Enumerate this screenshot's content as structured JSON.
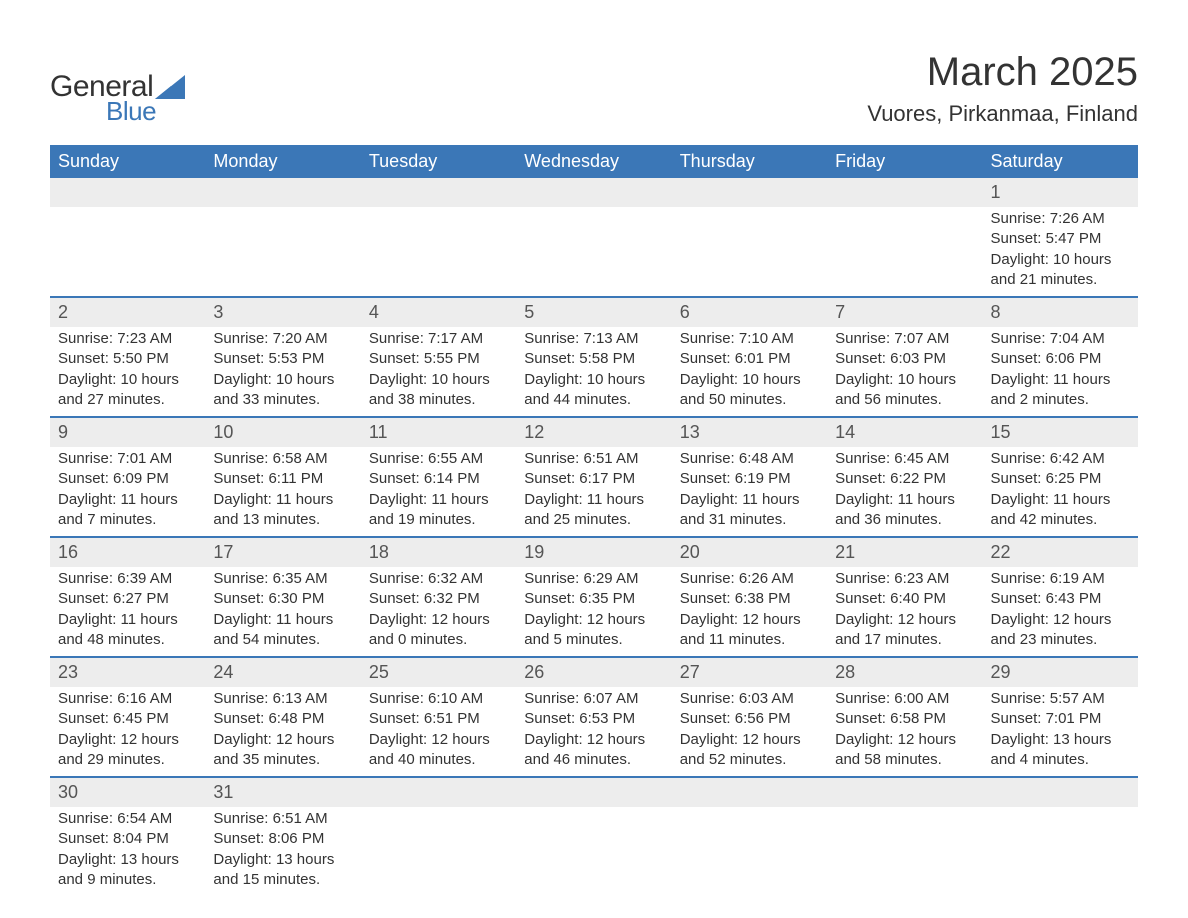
{
  "logo": {
    "text_top": "General",
    "text_bottom": "Blue",
    "accent_color": "#3b77b7"
  },
  "title": "March 2025",
  "location": "Vuores, Pirkanmaa, Finland",
  "colors": {
    "header_bg": "#3b77b7",
    "header_text": "#ffffff",
    "daynum_bg": "#ededed",
    "row_border": "#3b77b7",
    "body_text": "#333333",
    "bg": "#ffffff"
  },
  "fonts": {
    "title_size_pt": 30,
    "location_size_pt": 17,
    "header_size_pt": 14,
    "daynum_size_pt": 14,
    "detail_size_pt": 11
  },
  "day_headers": [
    "Sunday",
    "Monday",
    "Tuesday",
    "Wednesday",
    "Thursday",
    "Friday",
    "Saturday"
  ],
  "weeks": [
    {
      "nums": [
        "",
        "",
        "",
        "",
        "",
        "",
        "1"
      ],
      "details": [
        "",
        "",
        "",
        "",
        "",
        "",
        "Sunrise: 7:26 AM\nSunset: 5:47 PM\nDaylight: 10 hours and 21 minutes."
      ]
    },
    {
      "nums": [
        "2",
        "3",
        "4",
        "5",
        "6",
        "7",
        "8"
      ],
      "details": [
        "Sunrise: 7:23 AM\nSunset: 5:50 PM\nDaylight: 10 hours and 27 minutes.",
        "Sunrise: 7:20 AM\nSunset: 5:53 PM\nDaylight: 10 hours and 33 minutes.",
        "Sunrise: 7:17 AM\nSunset: 5:55 PM\nDaylight: 10 hours and 38 minutes.",
        "Sunrise: 7:13 AM\nSunset: 5:58 PM\nDaylight: 10 hours and 44 minutes.",
        "Sunrise: 7:10 AM\nSunset: 6:01 PM\nDaylight: 10 hours and 50 minutes.",
        "Sunrise: 7:07 AM\nSunset: 6:03 PM\nDaylight: 10 hours and 56 minutes.",
        "Sunrise: 7:04 AM\nSunset: 6:06 PM\nDaylight: 11 hours and 2 minutes."
      ]
    },
    {
      "nums": [
        "9",
        "10",
        "11",
        "12",
        "13",
        "14",
        "15"
      ],
      "details": [
        "Sunrise: 7:01 AM\nSunset: 6:09 PM\nDaylight: 11 hours and 7 minutes.",
        "Sunrise: 6:58 AM\nSunset: 6:11 PM\nDaylight: 11 hours and 13 minutes.",
        "Sunrise: 6:55 AM\nSunset: 6:14 PM\nDaylight: 11 hours and 19 minutes.",
        "Sunrise: 6:51 AM\nSunset: 6:17 PM\nDaylight: 11 hours and 25 minutes.",
        "Sunrise: 6:48 AM\nSunset: 6:19 PM\nDaylight: 11 hours and 31 minutes.",
        "Sunrise: 6:45 AM\nSunset: 6:22 PM\nDaylight: 11 hours and 36 minutes.",
        "Sunrise: 6:42 AM\nSunset: 6:25 PM\nDaylight: 11 hours and 42 minutes."
      ]
    },
    {
      "nums": [
        "16",
        "17",
        "18",
        "19",
        "20",
        "21",
        "22"
      ],
      "details": [
        "Sunrise: 6:39 AM\nSunset: 6:27 PM\nDaylight: 11 hours and 48 minutes.",
        "Sunrise: 6:35 AM\nSunset: 6:30 PM\nDaylight: 11 hours and 54 minutes.",
        "Sunrise: 6:32 AM\nSunset: 6:32 PM\nDaylight: 12 hours and 0 minutes.",
        "Sunrise: 6:29 AM\nSunset: 6:35 PM\nDaylight: 12 hours and 5 minutes.",
        "Sunrise: 6:26 AM\nSunset: 6:38 PM\nDaylight: 12 hours and 11 minutes.",
        "Sunrise: 6:23 AM\nSunset: 6:40 PM\nDaylight: 12 hours and 17 minutes.",
        "Sunrise: 6:19 AM\nSunset: 6:43 PM\nDaylight: 12 hours and 23 minutes."
      ]
    },
    {
      "nums": [
        "23",
        "24",
        "25",
        "26",
        "27",
        "28",
        "29"
      ],
      "details": [
        "Sunrise: 6:16 AM\nSunset: 6:45 PM\nDaylight: 12 hours and 29 minutes.",
        "Sunrise: 6:13 AM\nSunset: 6:48 PM\nDaylight: 12 hours and 35 minutes.",
        "Sunrise: 6:10 AM\nSunset: 6:51 PM\nDaylight: 12 hours and 40 minutes.",
        "Sunrise: 6:07 AM\nSunset: 6:53 PM\nDaylight: 12 hours and 46 minutes.",
        "Sunrise: 6:03 AM\nSunset: 6:56 PM\nDaylight: 12 hours and 52 minutes.",
        "Sunrise: 6:00 AM\nSunset: 6:58 PM\nDaylight: 12 hours and 58 minutes.",
        "Sunrise: 5:57 AM\nSunset: 7:01 PM\nDaylight: 13 hours and 4 minutes."
      ]
    },
    {
      "nums": [
        "30",
        "31",
        "",
        "",
        "",
        "",
        ""
      ],
      "details": [
        "Sunrise: 6:54 AM\nSunset: 8:04 PM\nDaylight: 13 hours and 9 minutes.",
        "Sunrise: 6:51 AM\nSunset: 8:06 PM\nDaylight: 13 hours and 15 minutes.",
        "",
        "",
        "",
        "",
        ""
      ]
    }
  ]
}
